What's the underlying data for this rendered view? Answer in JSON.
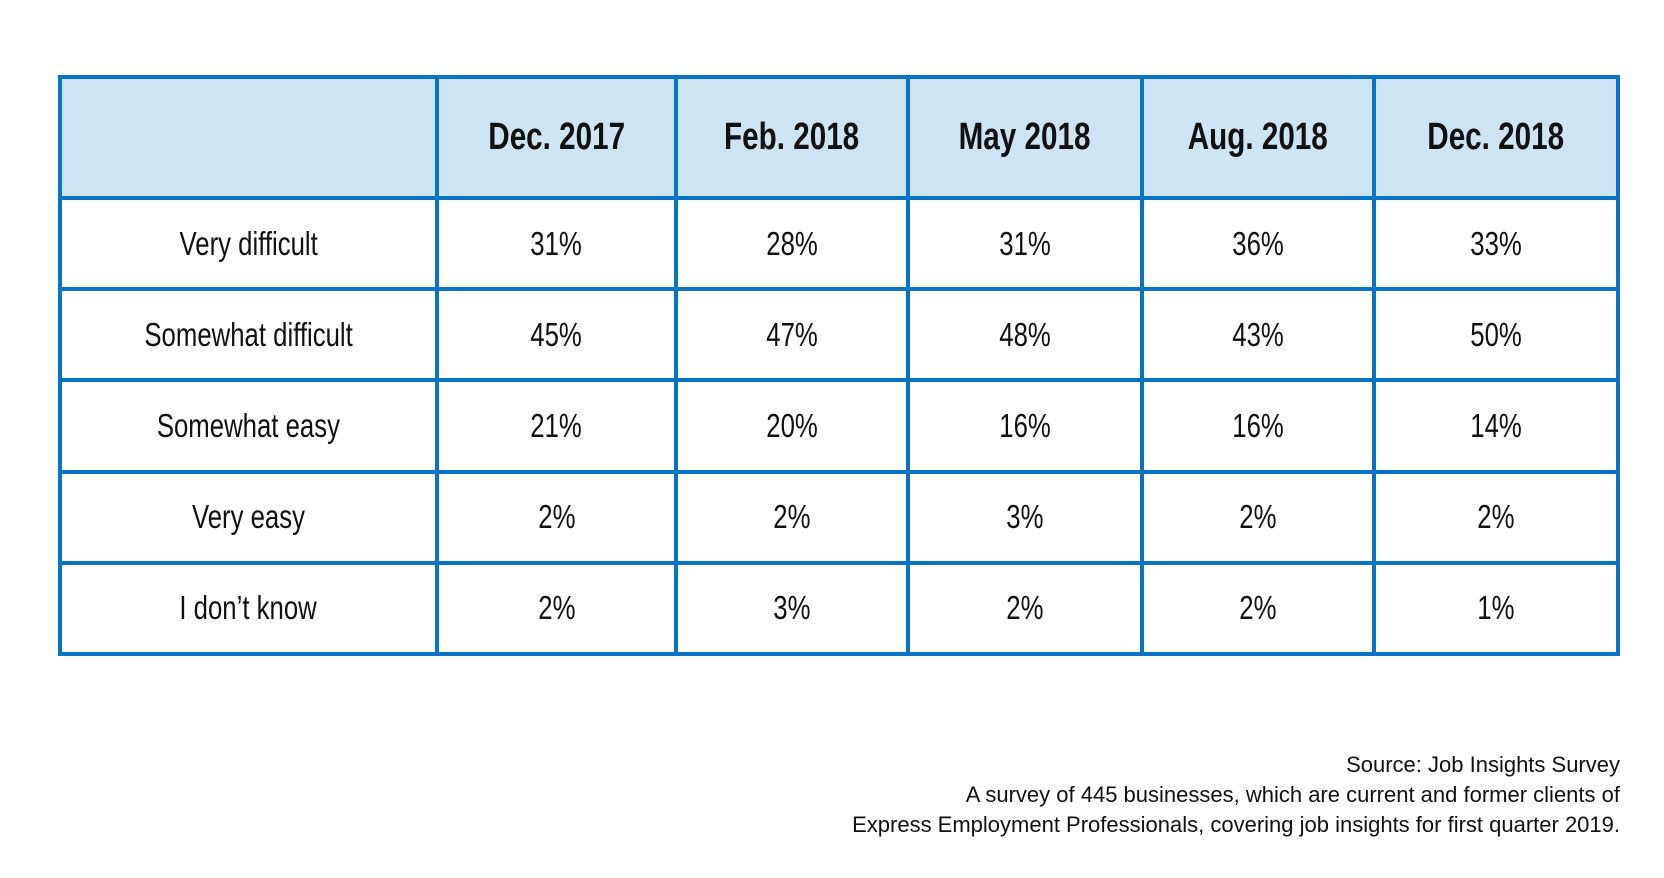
{
  "chart_data": {
    "type": "table",
    "columns": [
      "",
      "Dec. 2017",
      "Feb. 2018",
      "May 2018",
      "Aug. 2018",
      "Dec. 2018"
    ],
    "rows": [
      {
        "label": "Very difficult",
        "values": [
          "31%",
          "28%",
          "31%",
          "36%",
          "33%"
        ]
      },
      {
        "label": "Somewhat difficult",
        "values": [
          "45%",
          "47%",
          "48%",
          "43%",
          "50%"
        ]
      },
      {
        "label": "Somewhat easy",
        "values": [
          "21%",
          "20%",
          "16%",
          "16%",
          "14%"
        ]
      },
      {
        "label": "Very easy",
        "values": [
          "2%",
          "2%",
          "3%",
          "2%",
          "2%"
        ]
      },
      {
        "label": "I don’t know",
        "values": [
          "2%",
          "3%",
          "2%",
          "2%",
          "1%"
        ]
      }
    ],
    "header_bg": "#cde4f3",
    "border_color": "#0a74c4"
  },
  "footnote": {
    "source": "Source: Job Insights Survey",
    "line2": "A survey of 445 businesses, which are current and former clients of",
    "line3": "Express Employment Professionals, covering job insights for first quarter 2019."
  }
}
